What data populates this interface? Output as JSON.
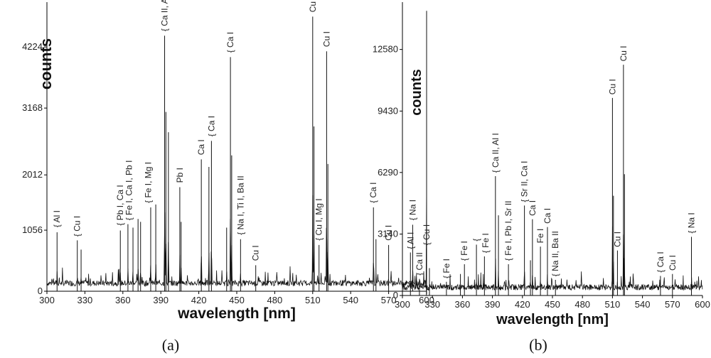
{
  "chart_data": [
    {
      "type": "line",
      "xlabel": "wavelength [nm]",
      "ylabel": "counts",
      "caption": "(a)",
      "xlim": [
        300,
        600
      ],
      "ylim": [
        0,
        5000
      ],
      "xticks": [
        300,
        330,
        360,
        390,
        420,
        450,
        480,
        510,
        540,
        570,
        600
      ],
      "yticks": [
        0,
        1056,
        2012,
        3168,
        4224
      ],
      "peaks": [
        {
          "x": 308,
          "y": 1020
        },
        {
          "x": 324,
          "y": 880
        },
        {
          "x": 327,
          "y": 720
        },
        {
          "x": 358,
          "y": 1050
        },
        {
          "x": 364,
          "y": 1160
        },
        {
          "x": 368,
          "y": 1100
        },
        {
          "x": 372,
          "y": 1250
        },
        {
          "x": 374,
          "y": 1200
        },
        {
          "x": 382,
          "y": 1450
        },
        {
          "x": 386,
          "y": 1500
        },
        {
          "x": 393,
          "y": 4420
        },
        {
          "x": 394,
          "y": 3100
        },
        {
          "x": 396,
          "y": 2750
        },
        {
          "x": 405,
          "y": 1800
        },
        {
          "x": 406,
          "y": 1200
        },
        {
          "x": 422,
          "y": 2280
        },
        {
          "x": 428,
          "y": 2150
        },
        {
          "x": 430,
          "y": 2600
        },
        {
          "x": 442,
          "y": 1100
        },
        {
          "x": 445,
          "y": 4050
        },
        {
          "x": 446,
          "y": 2350
        },
        {
          "x": 453,
          "y": 900
        },
        {
          "x": 465,
          "y": 450
        },
        {
          "x": 510,
          "y": 4750
        },
        {
          "x": 511,
          "y": 2850
        },
        {
          "x": 515,
          "y": 800
        },
        {
          "x": 521,
          "y": 4150
        },
        {
          "x": 522,
          "y": 2200
        },
        {
          "x": 558,
          "y": 1450
        },
        {
          "x": 560,
          "y": 900
        },
        {
          "x": 570,
          "y": 800
        },
        {
          "x": 589,
          "y": 1150
        },
        {
          "x": 600,
          "y": 4850
        }
      ],
      "annotations": [
        {
          "x": 308,
          "y": 1080,
          "text": "{ Al I"
        },
        {
          "x": 324,
          "y": 920,
          "text": "{ Cu I"
        },
        {
          "x": 358,
          "y": 1110,
          "text": "{ Pb I, Ca I"
        },
        {
          "x": 365,
          "y": 1200,
          "text": "{ Fe I, Ca I, Pb I"
        },
        {
          "x": 380,
          "y": 1500,
          "text": "{ Fe I, Mg I"
        },
        {
          "x": 393,
          "y": 4470,
          "text": "{ Ca II, Al I"
        },
        {
          "x": 405,
          "y": 1850,
          "text": "Pb I"
        },
        {
          "x": 422,
          "y": 2330,
          "text": "Ca I"
        },
        {
          "x": 430,
          "y": 2650,
          "text": "{ Ca I"
        },
        {
          "x": 445,
          "y": 4100,
          "text": "{ Ca I"
        },
        {
          "x": 453,
          "y": 950,
          "text": "{ Na I, Ti I, Ba II"
        },
        {
          "x": 465,
          "y": 500,
          "text": "Cu I"
        },
        {
          "x": 510,
          "y": 4800,
          "text": "Cu I"
        },
        {
          "x": 515,
          "y": 850,
          "text": "{ Cu I, Mg I"
        },
        {
          "x": 521,
          "y": 4200,
          "text": "Cu I"
        },
        {
          "x": 558,
          "y": 1500,
          "text": "{ Ca I"
        },
        {
          "x": 570,
          "y": 850,
          "text": "Cu I"
        },
        {
          "x": 589,
          "y": 1200,
          "text": "{ Na I"
        }
      ]
    },
    {
      "type": "line",
      "xlabel": "wavelength [nm]",
      "ylabel": "counts",
      "caption": "(b)",
      "xlim": [
        300,
        600
      ],
      "ylim": [
        0,
        15000
      ],
      "xticks": [
        300,
        330,
        360,
        390,
        420,
        450,
        480,
        510,
        540,
        570,
        600
      ],
      "yticks": [
        0,
        3140,
        6290,
        9430,
        12580
      ],
      "peaks": [
        {
          "x": 308,
          "y": 2200
        },
        {
          "x": 317,
          "y": 850
        },
        {
          "x": 324,
          "y": 2400
        },
        {
          "x": 327,
          "y": 1400
        },
        {
          "x": 344,
          "y": 700
        },
        {
          "x": 358,
          "y": 1100
        },
        {
          "x": 362,
          "y": 1600
        },
        {
          "x": 374,
          "y": 2600
        },
        {
          "x": 382,
          "y": 2000
        },
        {
          "x": 393,
          "y": 6100
        },
        {
          "x": 396,
          "y": 4100
        },
        {
          "x": 406,
          "y": 1600
        },
        {
          "x": 422,
          "y": 4600
        },
        {
          "x": 428,
          "y": 1800
        },
        {
          "x": 430,
          "y": 3900
        },
        {
          "x": 438,
          "y": 2500
        },
        {
          "x": 445,
          "y": 3500
        },
        {
          "x": 453,
          "y": 800
        },
        {
          "x": 510,
          "y": 10100
        },
        {
          "x": 511,
          "y": 5100
        },
        {
          "x": 515,
          "y": 2300
        },
        {
          "x": 521,
          "y": 11800
        },
        {
          "x": 522,
          "y": 6200
        },
        {
          "x": 558,
          "y": 1000
        },
        {
          "x": 570,
          "y": 1100
        },
        {
          "x": 589,
          "y": 3000
        }
      ],
      "annotations": [
        {
          "x": 308,
          "y": 2300,
          "text": "{ Al I"
        },
        {
          "x": 317,
          "y": 950,
          "text": "{ Ca II"
        },
        {
          "x": 324,
          "y": 2500,
          "text": "{ Cu I"
        },
        {
          "x": 344,
          "y": 800,
          "text": "{ Fe I"
        },
        {
          "x": 362,
          "y": 1700,
          "text": "{ Fe I"
        },
        {
          "x": 374,
          "y": 2700,
          "text": "{"
        },
        {
          "x": 383,
          "y": 2100,
          "text": "{ Fe I"
        },
        {
          "x": 393,
          "y": 6200,
          "text": "{ Ca II, Al I"
        },
        {
          "x": 406,
          "y": 1700,
          "text": "{ Fe I, Pb I, Sr II"
        },
        {
          "x": 422,
          "y": 4700,
          "text": "{ Sr II, Ca I"
        },
        {
          "x": 430,
          "y": 4000,
          "text": "Ca I"
        },
        {
          "x": 438,
          "y": 2600,
          "text": "Fe I"
        },
        {
          "x": 445,
          "y": 3600,
          "text": "Ca I"
        },
        {
          "x": 453,
          "y": 900,
          "text": "{ Na II, Ba II"
        },
        {
          "x": 510,
          "y": 10200,
          "text": "Cu I"
        },
        {
          "x": 515,
          "y": 2400,
          "text": "Cu I"
        },
        {
          "x": 521,
          "y": 11900,
          "text": "Cu I"
        },
        {
          "x": 558,
          "y": 1100,
          "text": "{ Ca I"
        },
        {
          "x": 570,
          "y": 1200,
          "text": "Cu I"
        },
        {
          "x": 589,
          "y": 3100,
          "text": "{ Na I"
        }
      ]
    }
  ]
}
